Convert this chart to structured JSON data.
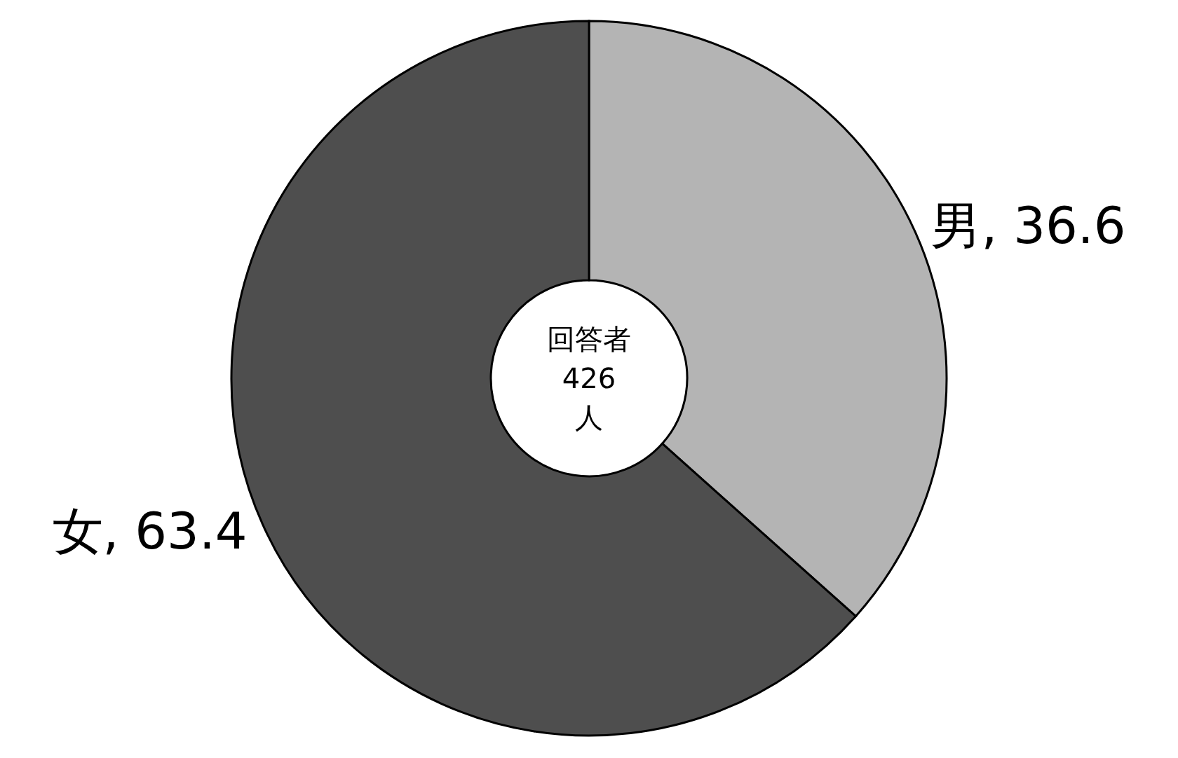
{
  "chart_data": {
    "type": "donut",
    "categories": [
      "男",
      "女"
    ],
    "values": [
      36.6,
      63.4
    ],
    "colors": [
      "#b4b4b4",
      "#4e4e4e"
    ],
    "value_labels": [
      ", 36.6",
      ", 63.4"
    ],
    "annotations": [
      "回答者",
      "426",
      "人"
    ]
  }
}
